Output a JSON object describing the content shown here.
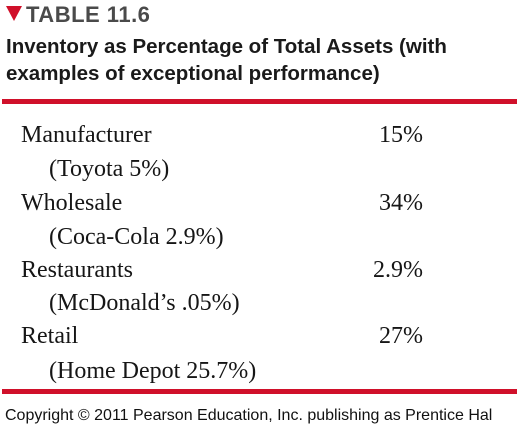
{
  "header": {
    "label": "TABLE 11.6",
    "triangle_color": "#d0102a"
  },
  "subtitle": {
    "line1": "Inventory as Percentage of Total Assets (with",
    "line2": "examples of exceptional performance)"
  },
  "rule_color": "#d0102a",
  "rows": [
    {
      "category": "Manufacturer",
      "value": "15%",
      "example": "(Toyota 5%)"
    },
    {
      "category": "Wholesale",
      "value": "34%",
      "example": "(Coca-Cola 2.9%)"
    },
    {
      "category": "Restaurants",
      "value": "2.9%",
      "example": "(McDonald’s .05%)"
    },
    {
      "category": "Retail",
      "value": "27%",
      "example": "(Home Depot 25.7%)"
    }
  ],
  "footer": "Copyright © 2011 Pearson Education, Inc. publishing as Prentice Hal"
}
